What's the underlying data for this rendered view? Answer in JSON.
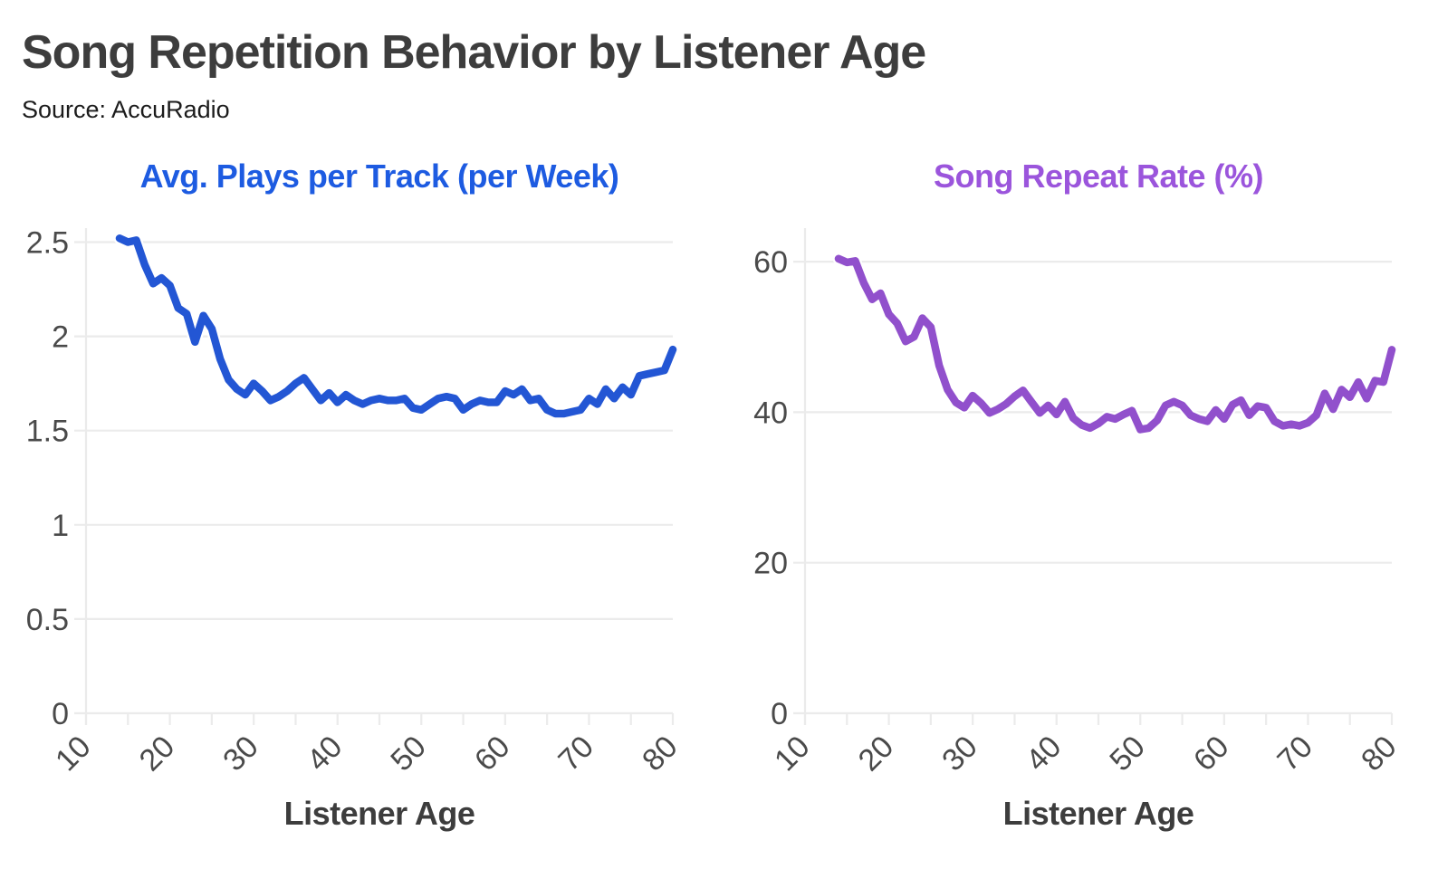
{
  "page": {
    "title": "Song Repetition Behavior by Listener Age",
    "source": "Source: AccuRadio"
  },
  "chart_data": [
    {
      "type": "line",
      "title": "Avg. Plays per Track (per Week)",
      "xlabel": "Listener Age",
      "ylabel": "",
      "title_color": "#1d5be1",
      "line_color": "#2356d4",
      "grid": "horizontal",
      "legend": "none",
      "xlim": [
        10,
        80
      ],
      "ylim": [
        0,
        2.56
      ],
      "x_ticks": [
        10,
        20,
        30,
        40,
        50,
        60,
        70,
        80
      ],
      "x_minor_ticks": [
        15,
        25,
        35,
        45,
        55,
        65,
        75
      ],
      "y_ticks": [
        0,
        0.5,
        1,
        1.5,
        2,
        2.5
      ],
      "x": [
        14,
        15,
        16,
        17,
        18,
        19,
        20,
        21,
        22,
        23,
        24,
        25,
        26,
        27,
        28,
        29,
        30,
        31,
        32,
        33,
        34,
        35,
        36,
        37,
        38,
        39,
        40,
        41,
        42,
        43,
        44,
        45,
        46,
        47,
        48,
        49,
        50,
        51,
        52,
        53,
        54,
        55,
        56,
        57,
        58,
        59,
        60,
        61,
        62,
        63,
        64,
        65,
        66,
        67,
        68,
        69,
        70,
        71,
        72,
        73,
        74,
        75,
        76,
        77,
        78,
        79,
        80
      ],
      "y": [
        2.52,
        2.5,
        2.51,
        2.38,
        2.28,
        2.31,
        2.27,
        2.15,
        2.12,
        1.97,
        2.11,
        2.04,
        1.88,
        1.77,
        1.72,
        1.69,
        1.75,
        1.71,
        1.66,
        1.68,
        1.71,
        1.75,
        1.78,
        1.72,
        1.66,
        1.7,
        1.65,
        1.69,
        1.66,
        1.64,
        1.66,
        1.67,
        1.66,
        1.66,
        1.67,
        1.62,
        1.61,
        1.64,
        1.67,
        1.68,
        1.67,
        1.61,
        1.64,
        1.66,
        1.65,
        1.65,
        1.71,
        1.69,
        1.72,
        1.66,
        1.67,
        1.61,
        1.59,
        1.59,
        1.6,
        1.61,
        1.67,
        1.64,
        1.72,
        1.67,
        1.73,
        1.69,
        1.79,
        1.8,
        1.81,
        1.82,
        1.93
      ]
    },
    {
      "type": "line",
      "title": "Song Repeat Rate (%)",
      "xlabel": "Listener Age",
      "ylabel": "",
      "title_color": "#9b55dc",
      "line_color": "#9150cc",
      "grid": "horizontal",
      "legend": "none",
      "xlim": [
        10,
        80
      ],
      "ylim": [
        0,
        64.1
      ],
      "x_ticks": [
        10,
        20,
        30,
        40,
        50,
        60,
        70,
        80
      ],
      "x_minor_ticks": [
        15,
        25,
        35,
        45,
        55,
        65,
        75
      ],
      "y_ticks": [
        0,
        20,
        40,
        60
      ],
      "x": [
        14,
        15,
        16,
        17,
        18,
        19,
        20,
        21,
        22,
        23,
        24,
        25,
        26,
        27,
        28,
        29,
        30,
        31,
        32,
        33,
        34,
        35,
        36,
        37,
        38,
        39,
        40,
        41,
        42,
        43,
        44,
        45,
        46,
        47,
        48,
        49,
        50,
        51,
        52,
        53,
        54,
        55,
        56,
        57,
        58,
        59,
        60,
        61,
        62,
        63,
        64,
        65,
        66,
        67,
        68,
        69,
        70,
        71,
        72,
        73,
        74,
        75,
        76,
        77,
        78,
        79,
        80
      ],
      "y": [
        60.4,
        59.9,
        60.1,
        57.2,
        55.0,
        55.8,
        53.0,
        51.8,
        49.4,
        50.0,
        52.5,
        51.3,
        46.2,
        43.0,
        41.3,
        40.6,
        42.2,
        41.2,
        39.9,
        40.4,
        41.1,
        42.1,
        42.9,
        41.4,
        39.9,
        40.9,
        39.7,
        41.4,
        39.2,
        38.3,
        37.9,
        38.5,
        39.4,
        39.1,
        39.7,
        40.2,
        37.7,
        37.9,
        38.9,
        40.9,
        41.4,
        40.9,
        39.6,
        39.1,
        38.8,
        40.3,
        39.1,
        41.0,
        41.6,
        39.6,
        40.8,
        40.6,
        38.8,
        38.2,
        38.4,
        38.2,
        38.6,
        39.6,
        42.5,
        40.4,
        43.0,
        42.0,
        44.0,
        41.8,
        44.2,
        44.0,
        48.3
      ]
    }
  ]
}
